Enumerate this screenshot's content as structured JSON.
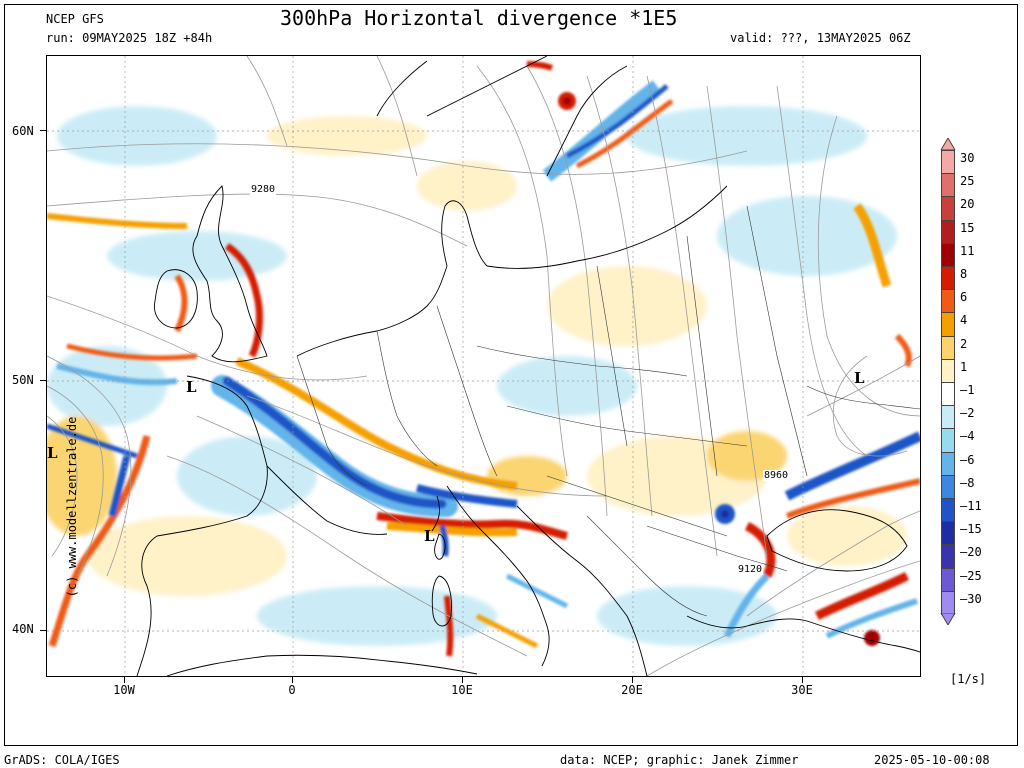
{
  "header": {
    "model": "NCEP GFS",
    "run": "run: 09MAY2025 18Z +84h",
    "title": "300hPa Horizontal divergence *1E5",
    "valid": "valid: ???, 13MAY2025 06Z"
  },
  "axes": {
    "lat_labels": [
      "60N",
      "50N",
      "40N"
    ],
    "lon_labels": [
      "10W",
      "0",
      "10E",
      "20E",
      "30E"
    ]
  },
  "vertical_credit": "(c) www.modellzentrale.de",
  "lows": [
    "L",
    "L",
    "L",
    "L"
  ],
  "contour_labels": [
    "9280",
    "8960",
    "9120"
  ],
  "legend": {
    "unit": "[1/s]",
    "levels": [
      "30",
      "25",
      "20",
      "15",
      "11",
      "8",
      "6",
      "4",
      "2",
      "1",
      "-1",
      "-2",
      "-4",
      "-6",
      "-8",
      "-11",
      "-15",
      "-20",
      "-25",
      "-30"
    ],
    "colors": [
      "#f4a9a6",
      "#e0706c",
      "#c8403a",
      "#b01e1e",
      "#a00000",
      "#d41c00",
      "#f05a14",
      "#f5a000",
      "#fbd36a",
      "#fff1c6",
      "#ffffff",
      "#c9ebf6",
      "#97d9ee",
      "#62b4ea",
      "#3b88de",
      "#1e54c7",
      "#1f2ca3",
      "#3a33b0",
      "#6d58d6",
      "#a08cf0"
    ]
  },
  "footer": {
    "left": "GrADS: COLA/IGES",
    "center": "data: NCEP; graphic: Janek Zimmer",
    "right": "2025-05-10-00:08"
  }
}
